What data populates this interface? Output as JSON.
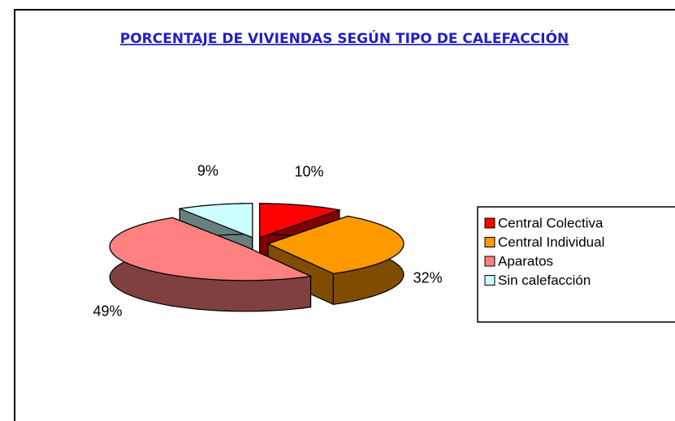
{
  "chart_data": {
    "type": "pie",
    "title": "PORCENTAJE DE VIVIENDAS SEGÚN TIPO DE CALEFACCIÓN",
    "categories": [
      "Central Colectiva",
      "Central Individual",
      "Aparatos",
      "Sin calefacción"
    ],
    "values": [
      10,
      32,
      49,
      9
    ],
    "value_labels": [
      "10%",
      "32%",
      "49%",
      "9%"
    ],
    "colors": [
      "#ff0000",
      "#ff9900",
      "#ff8080",
      "#ccffff"
    ],
    "legend": "right"
  }
}
